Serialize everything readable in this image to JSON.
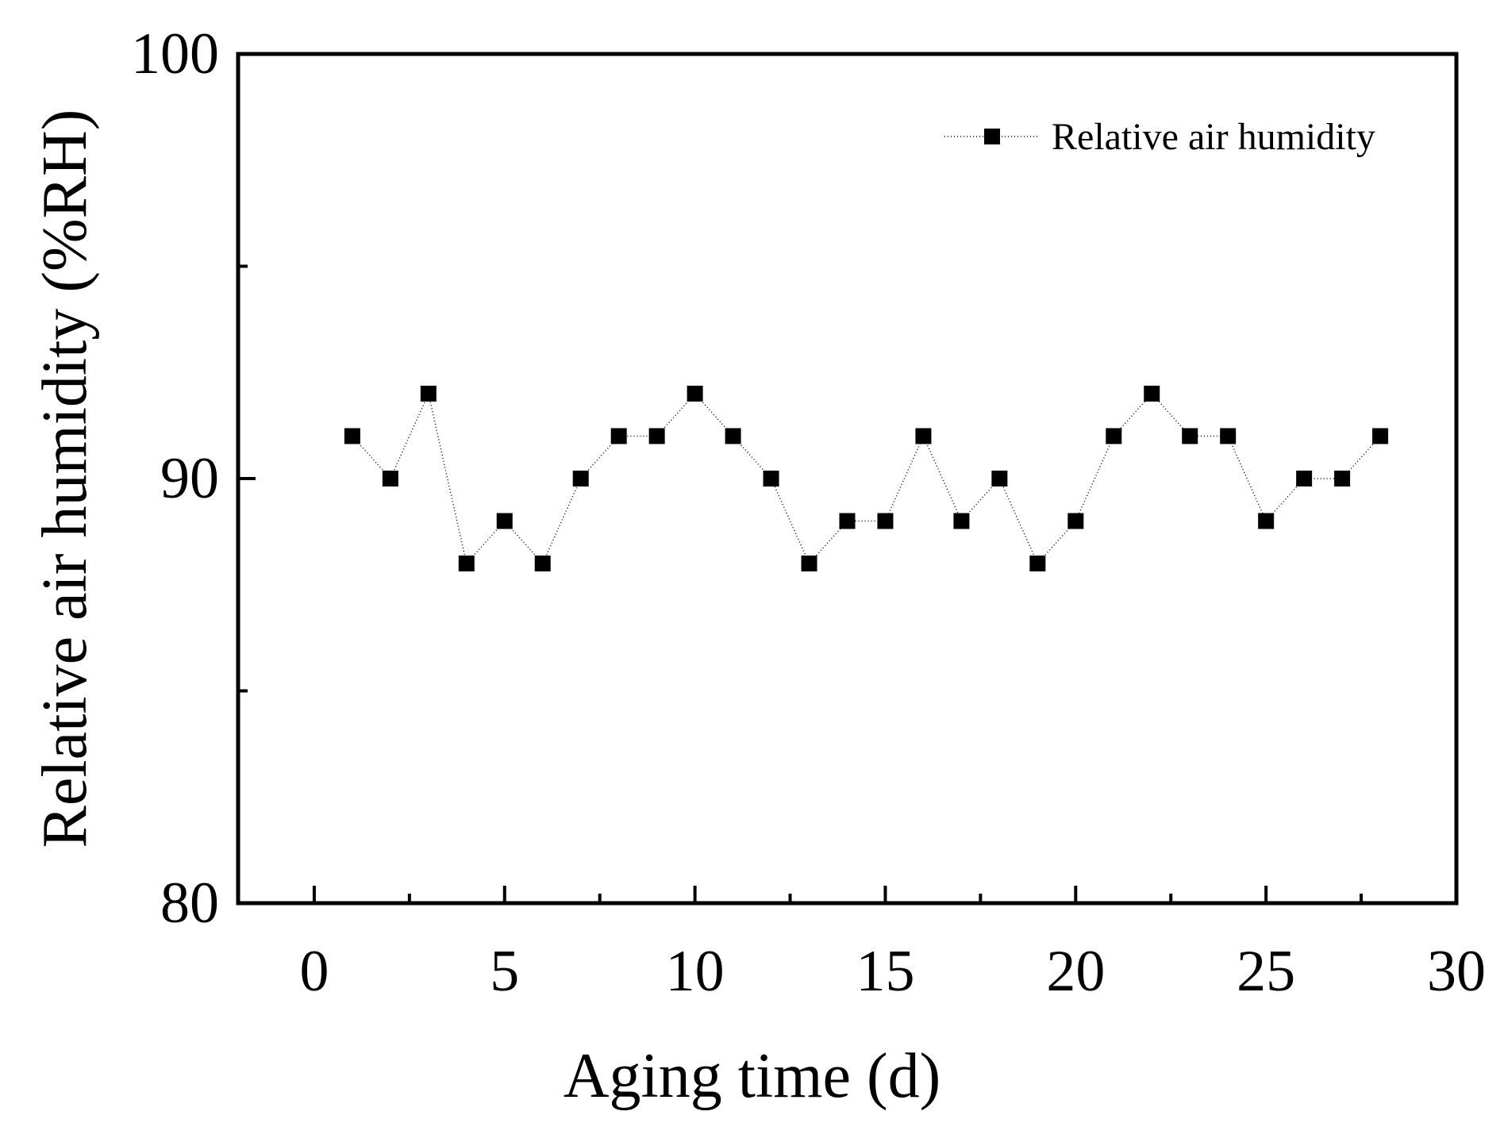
{
  "chart_data": {
    "type": "line",
    "title": "",
    "xlabel": "Aging time (d)",
    "ylabel": "Relative air humidity (%RH)",
    "xlim": [
      -2,
      30
    ],
    "ylim": [
      80,
      100
    ],
    "xticks": [
      0,
      5,
      10,
      15,
      20,
      25,
      30
    ],
    "xtick_labels": [
      "0",
      "5",
      "10",
      "15",
      "20",
      "25",
      "30"
    ],
    "xminor_ticks": [
      2.5,
      7.5,
      12.5,
      17.5,
      22.5,
      27.5
    ],
    "yticks": [
      80,
      90,
      100
    ],
    "ytick_labels": [
      "80",
      "90",
      "100"
    ],
    "yminor_ticks": [
      85,
      95
    ],
    "grid": false,
    "legend_position": "top-right",
    "series": [
      {
        "name": "Relative air humidity",
        "marker": "square",
        "color": "#000000",
        "x": [
          1,
          2,
          3,
          4,
          5,
          6,
          7,
          8,
          9,
          10,
          11,
          12,
          13,
          14,
          15,
          16,
          17,
          18,
          19,
          20,
          21,
          22,
          23,
          24,
          25,
          26,
          27,
          28
        ],
        "values": [
          91,
          90,
          92,
          88,
          89,
          88,
          90,
          91,
          91,
          92,
          91,
          90,
          88,
          89,
          89,
          91,
          89,
          90,
          88,
          89,
          91,
          92,
          91,
          91,
          89,
          90,
          90,
          91
        ]
      }
    ]
  }
}
